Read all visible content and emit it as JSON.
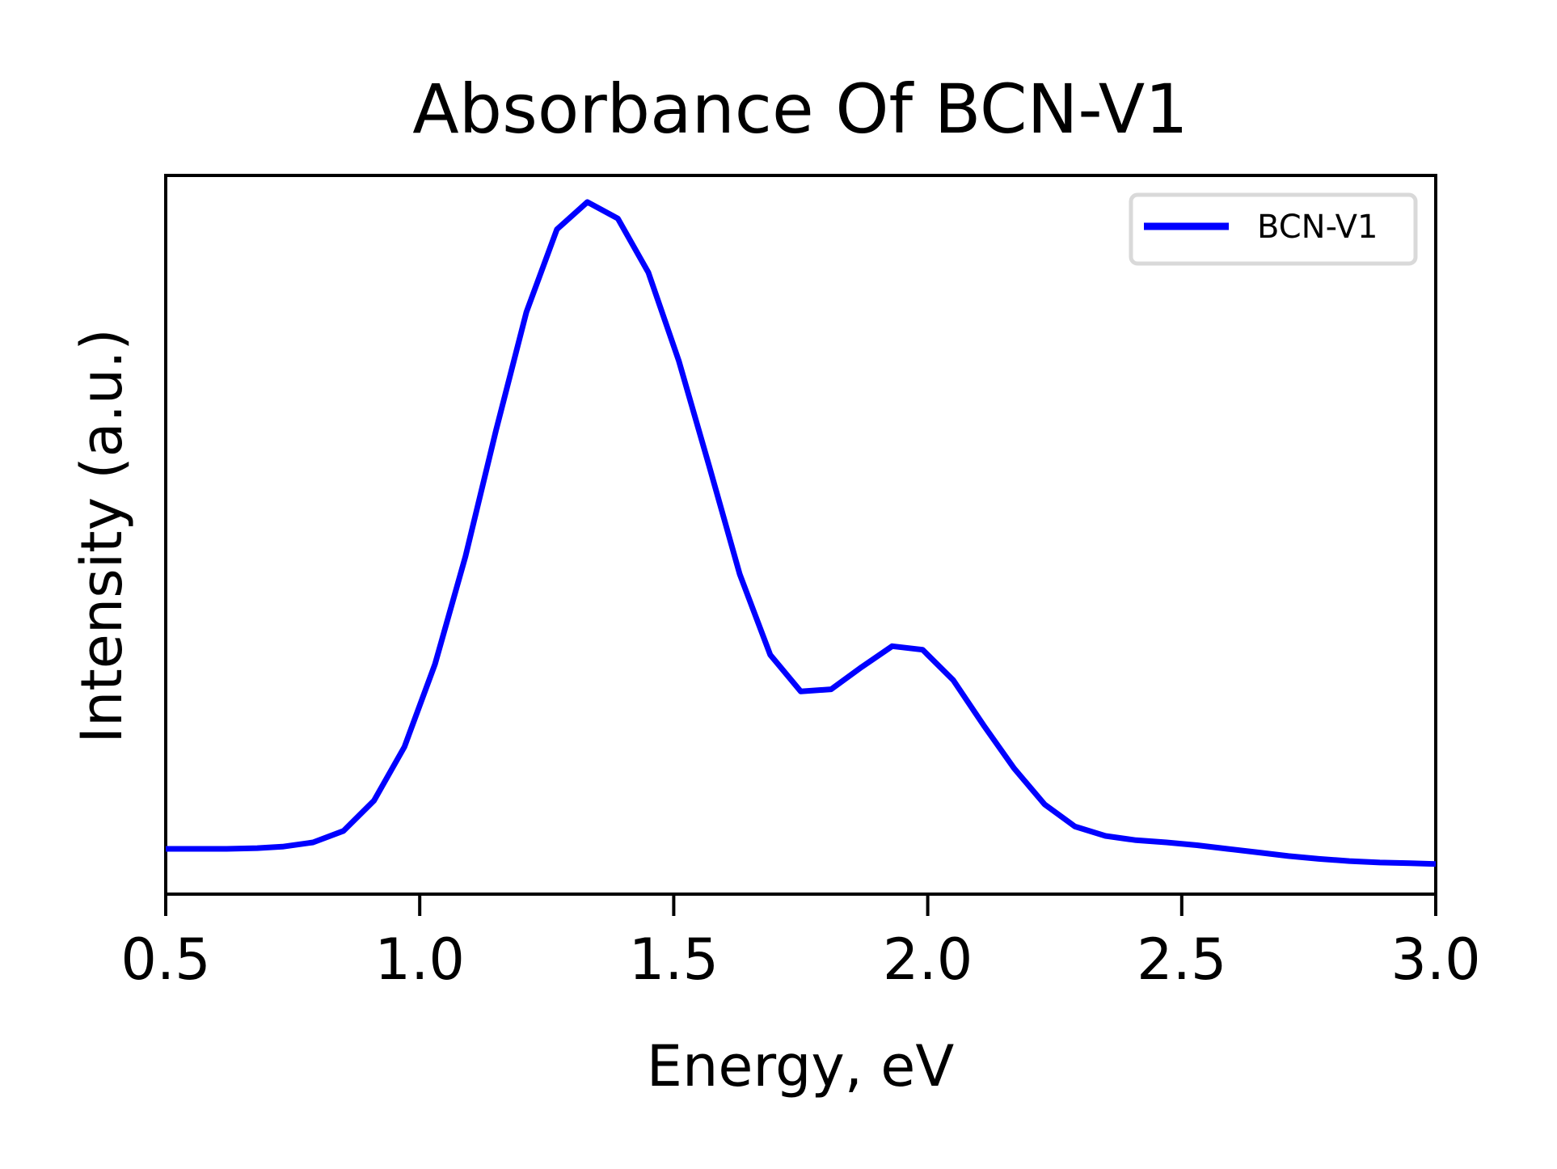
{
  "chart_data": {
    "type": "line",
    "title": "Absorbance Of BCN-V1",
    "xlabel": "Energy, eV",
    "ylabel": "Intensity (a.u.)",
    "xlim": [
      0.5,
      3.0
    ],
    "ylim": [
      0,
      1
    ],
    "xticks": [
      "0.5",
      "1.0",
      "1.5",
      "2.0",
      "2.5",
      "3.0"
    ],
    "yticks": [],
    "grid": false,
    "legend_position": "top-right",
    "series": [
      {
        "name": "BCN-V1",
        "color": "#0000ff",
        "x": [
          0.5,
          0.56,
          0.62,
          0.68,
          0.73,
          0.79,
          0.85,
          0.91,
          0.97,
          1.03,
          1.09,
          1.15,
          1.21,
          1.27,
          1.33,
          1.39,
          1.45,
          1.51,
          1.57,
          1.63,
          1.69,
          1.75,
          1.81,
          1.87,
          1.93,
          1.99,
          2.05,
          2.11,
          2.17,
          2.23,
          2.29,
          2.35,
          2.41,
          2.47,
          2.53,
          2.59,
          2.65,
          2.71,
          2.77,
          2.83,
          2.89,
          2.95,
          3.0
        ],
        "y": [
          0.063,
          0.063,
          0.063,
          0.064,
          0.066,
          0.072,
          0.088,
          0.13,
          0.205,
          0.32,
          0.47,
          0.645,
          0.81,
          0.925,
          0.963,
          0.94,
          0.865,
          0.742,
          0.595,
          0.445,
          0.333,
          0.282,
          0.285,
          0.316,
          0.345,
          0.34,
          0.298,
          0.235,
          0.175,
          0.125,
          0.094,
          0.081,
          0.075,
          0.072,
          0.068,
          0.063,
          0.058,
          0.053,
          0.049,
          0.046,
          0.044,
          0.043,
          0.042
        ]
      }
    ]
  }
}
